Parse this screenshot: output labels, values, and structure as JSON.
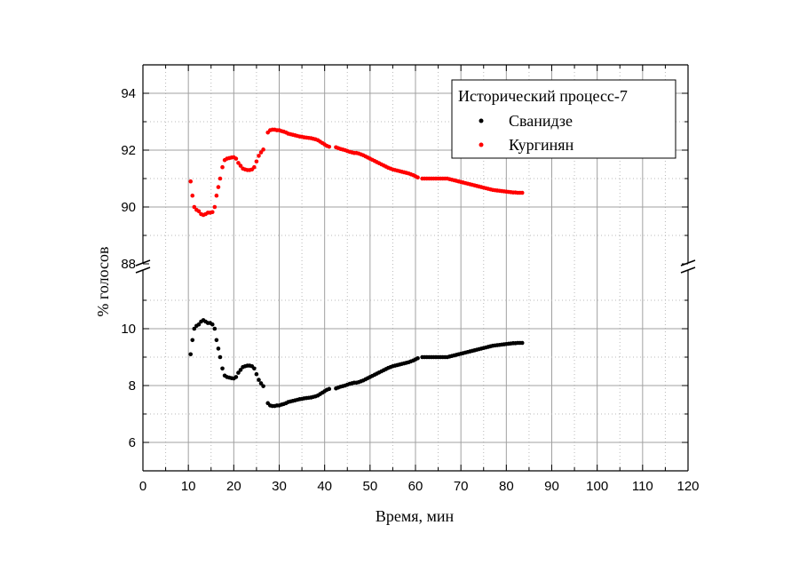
{
  "chart_data": {
    "type": "scatter",
    "xlabel": "Время, мин",
    "ylabel": "% голосов",
    "xlim": [
      0,
      120
    ],
    "x_ticks": [
      0,
      10,
      20,
      30,
      40,
      50,
      60,
      70,
      80,
      90,
      100,
      110,
      120
    ],
    "y_axis_broken": true,
    "y_lower_range": [
      5,
      11.8
    ],
    "y_upper_range": [
      88,
      95.5
    ],
    "y_ticks_lower": [
      6,
      8,
      10
    ],
    "y_ticks_upper": [
      88,
      90,
      92,
      94
    ],
    "grid": true,
    "legend": {
      "title": "Исторический процесс-7",
      "placement": "top-right"
    },
    "series": [
      {
        "name": "Сванидзе",
        "color": "#000000",
        "points": [
          [
            10.5,
            9.1
          ],
          [
            10.9,
            9.6
          ],
          [
            11.3,
            10.0
          ],
          [
            11.8,
            10.1
          ],
          [
            12.3,
            10.15
          ],
          [
            12.8,
            10.25
          ],
          [
            13.3,
            10.3
          ],
          [
            13.8,
            10.25
          ],
          [
            14.3,
            10.2
          ],
          [
            14.8,
            10.2
          ],
          [
            15.3,
            10.15
          ],
          [
            15.8,
            10.0
          ],
          [
            16.2,
            9.6
          ],
          [
            16.6,
            9.3
          ],
          [
            17.0,
            9.0
          ],
          [
            17.5,
            8.6
          ],
          [
            18.0,
            8.35
          ],
          [
            18.5,
            8.3
          ],
          [
            19.0,
            8.28
          ],
          [
            19.5,
            8.26
          ],
          [
            20.0,
            8.25
          ],
          [
            20.5,
            8.3
          ],
          [
            21.0,
            8.45
          ],
          [
            21.5,
            8.55
          ],
          [
            22.0,
            8.65
          ],
          [
            22.5,
            8.68
          ],
          [
            23.0,
            8.7
          ],
          [
            23.5,
            8.7
          ],
          [
            24.0,
            8.68
          ],
          [
            24.5,
            8.6
          ],
          [
            25.0,
            8.4
          ],
          [
            25.5,
            8.2
          ],
          [
            26.0,
            8.08
          ],
          [
            26.5,
            7.98
          ],
          [
            27.5,
            7.38
          ],
          [
            28.0,
            7.3
          ],
          [
            28.5,
            7.28
          ],
          [
            29.0,
            7.28
          ],
          [
            29.5,
            7.3
          ],
          [
            30.0,
            7.3
          ],
          [
            30.5,
            7.33
          ],
          [
            31.0,
            7.35
          ],
          [
            31.5,
            7.38
          ],
          [
            32.0,
            7.42
          ],
          [
            32.5,
            7.44
          ],
          [
            33.0,
            7.46
          ],
          [
            33.5,
            7.48
          ],
          [
            34.0,
            7.5
          ],
          [
            34.5,
            7.52
          ],
          [
            35.0,
            7.53
          ],
          [
            35.5,
            7.55
          ],
          [
            36.0,
            7.56
          ],
          [
            36.5,
            7.57
          ],
          [
            37.0,
            7.58
          ],
          [
            37.5,
            7.6
          ],
          [
            38.0,
            7.62
          ],
          [
            38.5,
            7.65
          ],
          [
            39.0,
            7.7
          ],
          [
            39.5,
            7.75
          ],
          [
            40.0,
            7.8
          ],
          [
            40.5,
            7.85
          ],
          [
            41.0,
            7.88
          ],
          [
            42.5,
            7.9
          ],
          [
            43.0,
            7.93
          ],
          [
            43.5,
            7.96
          ],
          [
            44.0,
            7.98
          ],
          [
            44.5,
            8.0
          ],
          [
            45.0,
            8.03
          ],
          [
            45.5,
            8.06
          ],
          [
            46.0,
            8.08
          ],
          [
            46.5,
            8.1
          ],
          [
            47.0,
            8.1
          ],
          [
            47.5,
            8.12
          ],
          [
            48.0,
            8.15
          ],
          [
            48.5,
            8.18
          ],
          [
            49.0,
            8.22
          ],
          [
            49.5,
            8.26
          ],
          [
            50.0,
            8.3
          ],
          [
            50.5,
            8.34
          ],
          [
            51.0,
            8.38
          ],
          [
            51.5,
            8.42
          ],
          [
            52.0,
            8.46
          ],
          [
            52.5,
            8.5
          ],
          [
            53.0,
            8.54
          ],
          [
            53.5,
            8.58
          ],
          [
            54.0,
            8.62
          ],
          [
            54.5,
            8.65
          ],
          [
            55.0,
            8.68
          ],
          [
            55.5,
            8.7
          ],
          [
            56.0,
            8.72
          ],
          [
            56.5,
            8.74
          ],
          [
            57.0,
            8.76
          ],
          [
            57.5,
            8.78
          ],
          [
            58.0,
            8.8
          ],
          [
            58.5,
            8.82
          ],
          [
            59.0,
            8.85
          ],
          [
            59.5,
            8.88
          ],
          [
            60.0,
            8.92
          ],
          [
            60.5,
            8.96
          ],
          [
            61.5,
            9.0
          ],
          [
            62.0,
            9.0
          ],
          [
            62.5,
            9.0
          ],
          [
            63.0,
            9.0
          ],
          [
            63.5,
            9.0
          ],
          [
            64.0,
            9.0
          ],
          [
            64.5,
            9.0
          ],
          [
            65.0,
            9.0
          ],
          [
            65.5,
            9.0
          ],
          [
            66.0,
            9.0
          ],
          [
            66.5,
            9.0
          ],
          [
            67.0,
            9.0
          ],
          [
            67.5,
            9.02
          ],
          [
            68.0,
            9.04
          ],
          [
            68.5,
            9.06
          ],
          [
            69.0,
            9.08
          ],
          [
            69.5,
            9.1
          ],
          [
            70.0,
            9.12
          ],
          [
            70.5,
            9.14
          ],
          [
            71.0,
            9.16
          ],
          [
            71.5,
            9.18
          ],
          [
            72.0,
            9.2
          ],
          [
            72.5,
            9.22
          ],
          [
            73.0,
            9.24
          ],
          [
            73.5,
            9.26
          ],
          [
            74.0,
            9.28
          ],
          [
            74.5,
            9.3
          ],
          [
            75.0,
            9.32
          ],
          [
            75.5,
            9.34
          ],
          [
            76.0,
            9.36
          ],
          [
            76.5,
            9.38
          ],
          [
            77.0,
            9.4
          ],
          [
            77.5,
            9.41
          ],
          [
            78.0,
            9.42
          ],
          [
            78.5,
            9.43
          ],
          [
            79.0,
            9.44
          ],
          [
            79.5,
            9.45
          ],
          [
            80.0,
            9.46
          ],
          [
            80.5,
            9.47
          ],
          [
            81.0,
            9.48
          ],
          [
            81.5,
            9.49
          ],
          [
            82.0,
            9.49
          ],
          [
            82.5,
            9.5
          ],
          [
            83.0,
            9.5
          ],
          [
            83.5,
            9.5
          ]
        ]
      },
      {
        "name": "Кургинян",
        "color": "#ff0000",
        "points": [
          [
            10.5,
            90.9
          ],
          [
            10.9,
            90.4
          ],
          [
            11.3,
            90.0
          ],
          [
            11.8,
            89.9
          ],
          [
            12.3,
            89.85
          ],
          [
            12.8,
            89.75
          ],
          [
            13.3,
            89.72
          ],
          [
            13.8,
            89.75
          ],
          [
            14.3,
            89.8
          ],
          [
            14.8,
            89.8
          ],
          [
            15.3,
            89.82
          ],
          [
            15.8,
            90.0
          ],
          [
            16.2,
            90.4
          ],
          [
            16.6,
            90.7
          ],
          [
            17.0,
            91.0
          ],
          [
            17.5,
            91.4
          ],
          [
            18.0,
            91.65
          ],
          [
            18.5,
            91.7
          ],
          [
            19.0,
            91.72
          ],
          [
            19.5,
            91.74
          ],
          [
            20.0,
            91.75
          ],
          [
            20.5,
            91.7
          ],
          [
            21.0,
            91.55
          ],
          [
            21.5,
            91.45
          ],
          [
            22.0,
            91.35
          ],
          [
            22.5,
            91.32
          ],
          [
            23.0,
            91.3
          ],
          [
            23.5,
            91.3
          ],
          [
            24.0,
            91.32
          ],
          [
            24.5,
            91.4
          ],
          [
            25.0,
            91.6
          ],
          [
            25.5,
            91.8
          ],
          [
            26.0,
            91.92
          ],
          [
            26.5,
            92.02
          ],
          [
            27.5,
            92.62
          ],
          [
            28.0,
            92.7
          ],
          [
            28.5,
            92.72
          ],
          [
            29.0,
            92.72
          ],
          [
            29.5,
            92.7
          ],
          [
            30.0,
            92.7
          ],
          [
            30.5,
            92.67
          ],
          [
            31.0,
            92.65
          ],
          [
            31.5,
            92.62
          ],
          [
            32.0,
            92.58
          ],
          [
            32.5,
            92.56
          ],
          [
            33.0,
            92.54
          ],
          [
            33.5,
            92.52
          ],
          [
            34.0,
            92.5
          ],
          [
            34.5,
            92.48
          ],
          [
            35.0,
            92.47
          ],
          [
            35.5,
            92.45
          ],
          [
            36.0,
            92.44
          ],
          [
            36.5,
            92.43
          ],
          [
            37.0,
            92.42
          ],
          [
            37.5,
            92.4
          ],
          [
            38.0,
            92.38
          ],
          [
            38.5,
            92.35
          ],
          [
            39.0,
            92.3
          ],
          [
            39.5,
            92.25
          ],
          [
            40.0,
            92.2
          ],
          [
            40.5,
            92.15
          ],
          [
            41.0,
            92.12
          ],
          [
            42.5,
            92.1
          ],
          [
            43.0,
            92.07
          ],
          [
            43.5,
            92.04
          ],
          [
            44.0,
            92.02
          ],
          [
            44.5,
            92.0
          ],
          [
            45.0,
            91.97
          ],
          [
            45.5,
            91.94
          ],
          [
            46.0,
            91.92
          ],
          [
            46.5,
            91.9
          ],
          [
            47.0,
            91.9
          ],
          [
            47.5,
            91.88
          ],
          [
            48.0,
            91.85
          ],
          [
            48.5,
            91.82
          ],
          [
            49.0,
            91.78
          ],
          [
            49.5,
            91.74
          ],
          [
            50.0,
            91.7
          ],
          [
            50.5,
            91.66
          ],
          [
            51.0,
            91.62
          ],
          [
            51.5,
            91.58
          ],
          [
            52.0,
            91.54
          ],
          [
            52.5,
            91.5
          ],
          [
            53.0,
            91.46
          ],
          [
            53.5,
            91.42
          ],
          [
            54.0,
            91.38
          ],
          [
            54.5,
            91.35
          ],
          [
            55.0,
            91.32
          ],
          [
            55.5,
            91.3
          ],
          [
            56.0,
            91.28
          ],
          [
            56.5,
            91.26
          ],
          [
            57.0,
            91.24
          ],
          [
            57.5,
            91.22
          ],
          [
            58.0,
            91.2
          ],
          [
            58.5,
            91.18
          ],
          [
            59.0,
            91.15
          ],
          [
            59.5,
            91.12
          ],
          [
            60.0,
            91.08
          ],
          [
            60.5,
            91.04
          ],
          [
            61.5,
            91.0
          ],
          [
            62.0,
            91.0
          ],
          [
            62.5,
            91.0
          ],
          [
            63.0,
            91.0
          ],
          [
            63.5,
            91.0
          ],
          [
            64.0,
            91.0
          ],
          [
            64.5,
            91.0
          ],
          [
            65.0,
            91.0
          ],
          [
            65.5,
            91.0
          ],
          [
            66.0,
            91.0
          ],
          [
            66.5,
            91.0
          ],
          [
            67.0,
            91.0
          ],
          [
            67.5,
            90.98
          ],
          [
            68.0,
            90.96
          ],
          [
            68.5,
            90.94
          ],
          [
            69.0,
            90.92
          ],
          [
            69.5,
            90.9
          ],
          [
            70.0,
            90.88
          ],
          [
            70.5,
            90.86
          ],
          [
            71.0,
            90.84
          ],
          [
            71.5,
            90.82
          ],
          [
            72.0,
            90.8
          ],
          [
            72.5,
            90.78
          ],
          [
            73.0,
            90.76
          ],
          [
            73.5,
            90.74
          ],
          [
            74.0,
            90.72
          ],
          [
            74.5,
            90.7
          ],
          [
            75.0,
            90.68
          ],
          [
            75.5,
            90.66
          ],
          [
            76.0,
            90.64
          ],
          [
            76.5,
            90.62
          ],
          [
            77.0,
            90.6
          ],
          [
            77.5,
            90.59
          ],
          [
            78.0,
            90.58
          ],
          [
            78.5,
            90.57
          ],
          [
            79.0,
            90.56
          ],
          [
            79.5,
            90.55
          ],
          [
            80.0,
            90.54
          ],
          [
            80.5,
            90.53
          ],
          [
            81.0,
            90.52
          ],
          [
            81.5,
            90.51
          ],
          [
            82.0,
            90.51
          ],
          [
            82.5,
            90.5
          ],
          [
            83.0,
            90.5
          ],
          [
            83.5,
            90.5
          ]
        ]
      }
    ]
  }
}
